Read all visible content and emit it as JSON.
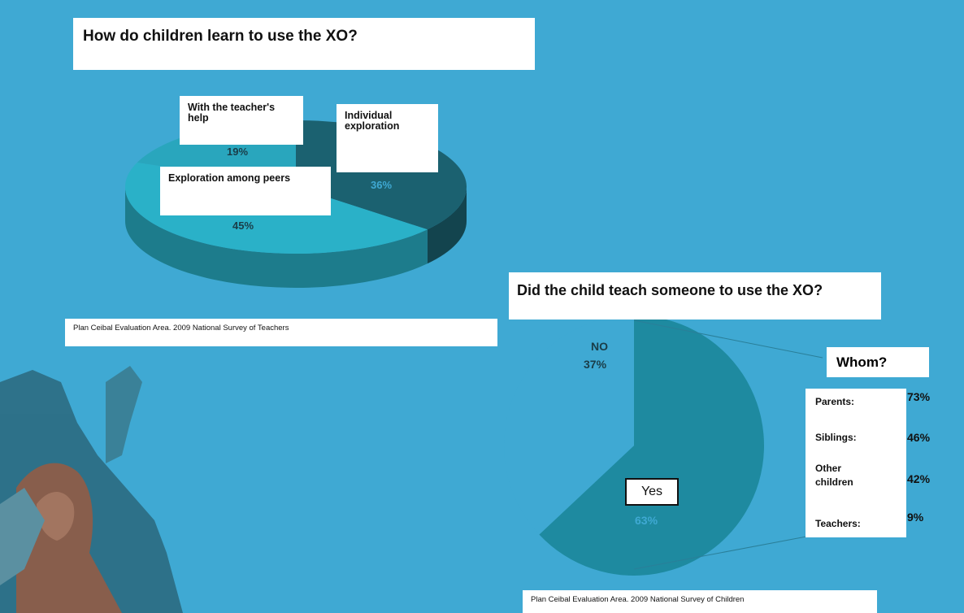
{
  "chart_data": [
    {
      "type": "pie",
      "title": "How do children learn to use the XO?",
      "labels": [
        "Individual exploration",
        "Exploration among peers",
        "With the teacher's help"
      ],
      "values": [
        36,
        45,
        19
      ],
      "value_labels": [
        "36%",
        "45%",
        "19%"
      ],
      "colors": [
        "#1b6170",
        "#2ab1c8",
        "#29a6bd"
      ],
      "source": "Plan Ceibal Evaluation Area.  2009  National Survey of Teachers"
    },
    {
      "type": "pie",
      "title": "Did the child teach someone to use the XO?",
      "labels": [
        "NO",
        "Yes"
      ],
      "values": [
        37,
        63
      ],
      "value_labels": [
        "37%",
        "63%"
      ],
      "colors": [
        "#3fa9d3",
        "#1e8aa0"
      ],
      "source": "Plan Ceibal Evaluation Area.  2009  National Survey of Children"
    },
    {
      "type": "table",
      "title": "Whom?",
      "rows": [
        {
          "label": "Parents:",
          "value": "73%"
        },
        {
          "label": "Siblings:",
          "value": "46%"
        },
        {
          "label": "Other children",
          "value": "42%"
        },
        {
          "label": "Teachers:",
          "value": "9%"
        }
      ]
    }
  ]
}
